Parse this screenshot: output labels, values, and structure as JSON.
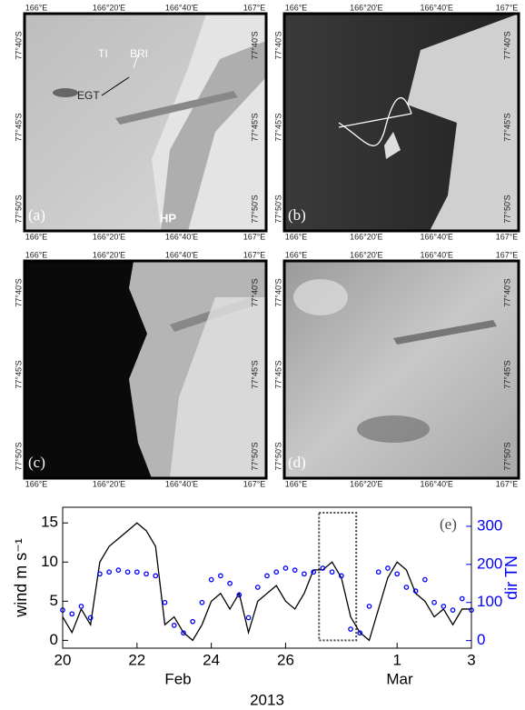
{
  "maps": {
    "lon_labels": [
      "166°E",
      "166°20'E",
      "166°40'E",
      "167°E"
    ],
    "lat_labels": [
      "77°40'S",
      "77°45'S",
      "77°50'S"
    ],
    "panels": [
      {
        "label": "(a)",
        "annotations": [
          "TI",
          "BRI",
          "EGT",
          "HP"
        ]
      },
      {
        "label": "(b)"
      },
      {
        "label": "(c)"
      },
      {
        "label": "(d)"
      }
    ]
  },
  "chart_data": {
    "type": "line",
    "label": "(e)",
    "y_label": "wind m s⁻¹",
    "y2_label": "dir TN",
    "x_sublabels": [
      "Feb",
      "Mar"
    ],
    "x_label": "2013",
    "x": [
      0,
      0.25,
      0.5,
      0.75,
      1,
      1.25,
      1.5,
      1.75,
      2,
      2.25,
      2.5,
      2.75,
      3,
      3.25,
      3.5,
      3.75,
      4,
      4.25,
      4.5,
      4.75,
      5,
      5.25,
      5.5,
      5.75,
      6,
      6.25,
      6.5,
      6.75,
      7,
      7.25,
      7.5,
      7.75,
      8,
      8.25,
      8.5,
      8.75,
      9,
      9.25,
      9.5,
      9.75,
      10,
      10.25,
      10.5,
      10.75,
      11
    ],
    "series": [
      {
        "color": "#000000",
        "values": [
          3,
          1,
          4,
          2,
          10,
          12,
          13,
          14,
          15,
          14,
          12,
          2,
          3,
          1,
          0,
          2,
          5,
          6,
          4,
          6,
          1,
          5,
          6,
          7,
          5,
          4,
          6,
          9,
          9,
          10,
          8,
          3,
          1,
          0,
          4,
          8,
          10,
          9,
          6,
          5,
          3,
          4,
          2,
          4,
          4
        ]
      },
      {
        "color": "#0000ff",
        "axis": "y2",
        "values": [
          80,
          70,
          90,
          60,
          175,
          180,
          185,
          180,
          180,
          175,
          170,
          100,
          40,
          20,
          50,
          100,
          160,
          170,
          150,
          120,
          60,
          140,
          170,
          180,
          190,
          185,
          175,
          180,
          190,
          180,
          170,
          30,
          20,
          90,
          180,
          190,
          175,
          140,
          130,
          160,
          100,
          90,
          80,
          110,
          80
        ]
      }
    ],
    "xlim": [
      0,
      11
    ],
    "xticks": [
      {
        "value": 0,
        "label": "20"
      },
      {
        "value": 2,
        "label": "22"
      },
      {
        "value": 4,
        "label": "24"
      },
      {
        "value": 6,
        "label": "26"
      },
      {
        "value": 9,
        "label": "1"
      },
      {
        "value": 11,
        "label": "3"
      }
    ],
    "ylim": [
      -1,
      17
    ],
    "yticks": [
      0,
      5,
      10,
      15
    ],
    "y2lim": [
      -20,
      350
    ],
    "y2ticks": [
      0,
      100,
      200,
      300
    ],
    "highlight": {
      "x": [
        6.9,
        7.9
      ],
      "y": [
        0,
        16.3
      ]
    }
  }
}
